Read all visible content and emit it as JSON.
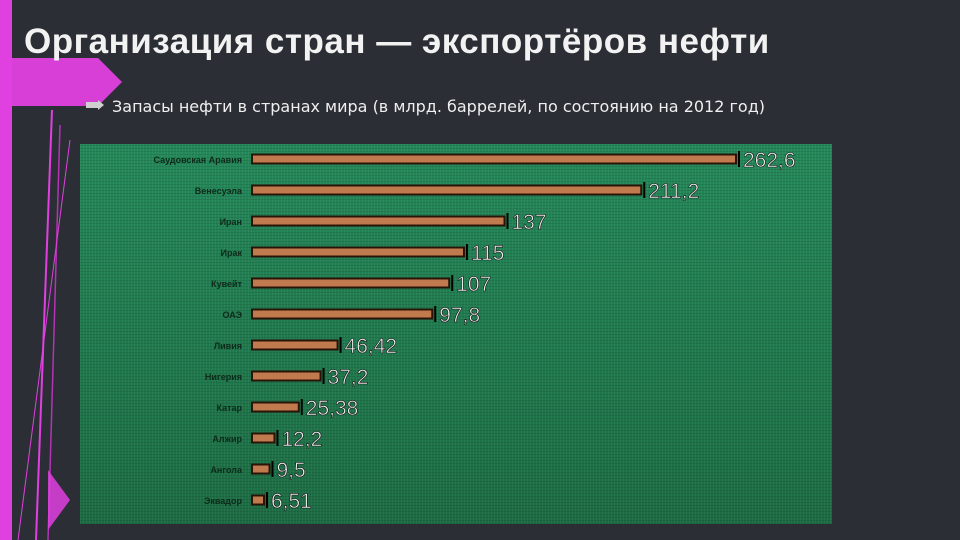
{
  "slide": {
    "title": "Организация стран — экспортёров нефти",
    "bullet": "Запасы нефти в странах мира (в млрд. баррелей, по состоянию на 2012 год)"
  },
  "colors": {
    "background": "#2b2e35",
    "accent": "#e040e0",
    "panel": "#1f7b4c",
    "bar": "#c07a4e",
    "bar_edge": "#2a1408"
  },
  "chart_data": {
    "type": "bar",
    "orientation": "horizontal",
    "categories": [
      "Саудовская Аравия",
      "Венесуэла",
      "Иран",
      "Ирак",
      "Кувейт",
      "ОАЭ",
      "Ливия",
      "Нигерия",
      "Катар",
      "Алжир",
      "Ангола",
      "Эквадор"
    ],
    "values": [
      262.6,
      211.2,
      137,
      115,
      107,
      97.8,
      46.42,
      37.2,
      25.38,
      12.2,
      9.5,
      6.51
    ],
    "value_labels": [
      "262,6",
      "211,2",
      "137",
      "115",
      "107",
      "97,8",
      "46,42",
      "37,2",
      "25,38",
      "12,2",
      "9,5",
      "6,51"
    ],
    "title": "",
    "xlabel": "",
    "ylabel": "",
    "xlim": [
      0,
      262.6
    ],
    "grid": false,
    "legend": "none"
  }
}
